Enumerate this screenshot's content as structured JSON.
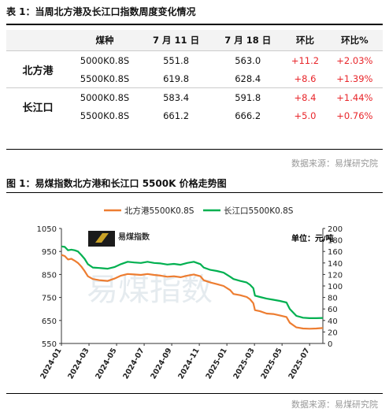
{
  "table_caption": "表 1：当周北方港及长江口指数周度变化情况",
  "table": {
    "headers": [
      "",
      "煤种",
      "7 月 11 日",
      "7 月 18 日",
      "环比",
      "环比%"
    ],
    "groups": [
      {
        "name": "北方港",
        "rows": [
          {
            "coal": "5000K0.8S",
            "jul11": "551.8",
            "jul18": "563.0",
            "chg": "+11.2",
            "pct": "+2.03%"
          },
          {
            "coal": "5500K0.8S",
            "jul11": "619.8",
            "jul18": "628.4",
            "chg": "+8.6",
            "pct": "+1.39%"
          }
        ]
      },
      {
        "name": "长江口",
        "rows": [
          {
            "coal": "5000K0.8S",
            "jul11": "583.4",
            "jul18": "591.8",
            "chg": "+8.4",
            "pct": "+1.44%"
          },
          {
            "coal": "5500K0.8S",
            "jul11": "661.2",
            "jul18": "666.2",
            "chg": "+5.0",
            "pct": "+0.76%"
          }
        ]
      }
    ]
  },
  "source_top": "数据来源：易煤研究院",
  "figure_caption": "图 1：易煤指数北方港和长江口 5500K 价格走势图",
  "source_bottom": "数据来源：易煤研究院",
  "logo_text": "易煤指数",
  "watermark": "易煤指数",
  "colors": {
    "north": "#ed7d31",
    "yangtze": "#00b050",
    "positive": "#e8252a"
  },
  "chart_data": {
    "type": "line",
    "unit_label": "单位：元/吨",
    "legend_position": "top-center",
    "x_tick_labels": [
      "2024-01",
      "2024-03",
      "2024-05",
      "2024-07",
      "2024-09",
      "2024-11",
      "2025-01",
      "2025-03",
      "2025-05",
      "2025-07"
    ],
    "x_range": [
      2024.0,
      2025.58
    ],
    "ylim_left": [
      550,
      1050
    ],
    "yticks_left": [
      550,
      650,
      750,
      850,
      950,
      1050
    ],
    "ylim_right": [
      0,
      200
    ],
    "yticks_right": [
      0,
      20,
      40,
      60,
      80,
      100,
      120,
      140,
      160,
      180,
      200
    ],
    "series": [
      {
        "name": "北方港5500K0.8S",
        "color": "#ed7d31",
        "points": [
          [
            2024.0,
            935
          ],
          [
            2024.02,
            930
          ],
          [
            2024.04,
            915
          ],
          [
            2024.06,
            918
          ],
          [
            2024.08,
            910
          ],
          [
            2024.1,
            900
          ],
          [
            2024.12,
            885
          ],
          [
            2024.14,
            865
          ],
          [
            2024.16,
            842
          ],
          [
            2024.19,
            830
          ],
          [
            2024.23,
            825
          ],
          [
            2024.28,
            822
          ],
          [
            2024.32,
            832
          ],
          [
            2024.36,
            845
          ],
          [
            2024.4,
            852
          ],
          [
            2024.44,
            850
          ],
          [
            2024.48,
            848
          ],
          [
            2024.52,
            852
          ],
          [
            2024.56,
            848
          ],
          [
            2024.6,
            845
          ],
          [
            2024.64,
            840
          ],
          [
            2024.68,
            842
          ],
          [
            2024.72,
            838
          ],
          [
            2024.76,
            845
          ],
          [
            2024.8,
            850
          ],
          [
            2024.84,
            842
          ],
          [
            2024.86,
            825
          ],
          [
            2024.9,
            815
          ],
          [
            2024.94,
            808
          ],
          [
            2024.98,
            800
          ],
          [
            2025.02,
            782
          ],
          [
            2025.04,
            765
          ],
          [
            2025.08,
            760
          ],
          [
            2025.12,
            752
          ],
          [
            2025.14,
            742
          ],
          [
            2025.16,
            725
          ],
          [
            2025.17,
            695
          ],
          [
            2025.2,
            690
          ],
          [
            2025.24,
            680
          ],
          [
            2025.28,
            678
          ],
          [
            2025.32,
            672
          ],
          [
            2025.36,
            665
          ],
          [
            2025.38,
            640
          ],
          [
            2025.42,
            620
          ],
          [
            2025.46,
            615
          ],
          [
            2025.5,
            614
          ],
          [
            2025.54,
            615
          ],
          [
            2025.58,
            617
          ]
        ]
      },
      {
        "name": "长江口5500K0.8S",
        "color": "#00b050",
        "points": [
          [
            2024.0,
            972
          ],
          [
            2024.02,
            970
          ],
          [
            2024.04,
            955
          ],
          [
            2024.06,
            958
          ],
          [
            2024.08,
            955
          ],
          [
            2024.1,
            950
          ],
          [
            2024.12,
            935
          ],
          [
            2024.14,
            918
          ],
          [
            2024.16,
            895
          ],
          [
            2024.19,
            880
          ],
          [
            2024.23,
            878
          ],
          [
            2024.28,
            875
          ],
          [
            2024.32,
            882
          ],
          [
            2024.36,
            895
          ],
          [
            2024.4,
            905
          ],
          [
            2024.44,
            902
          ],
          [
            2024.48,
            900
          ],
          [
            2024.52,
            905
          ],
          [
            2024.56,
            900
          ],
          [
            2024.6,
            898
          ],
          [
            2024.64,
            893
          ],
          [
            2024.68,
            896
          ],
          [
            2024.72,
            892
          ],
          [
            2024.76,
            900
          ],
          [
            2024.8,
            905
          ],
          [
            2024.84,
            895
          ],
          [
            2024.86,
            880
          ],
          [
            2024.9,
            870
          ],
          [
            2024.94,
            865
          ],
          [
            2024.98,
            858
          ],
          [
            2025.02,
            840
          ],
          [
            2025.04,
            830
          ],
          [
            2025.08,
            822
          ],
          [
            2025.12,
            815
          ],
          [
            2025.14,
            805
          ],
          [
            2025.16,
            790
          ],
          [
            2025.17,
            758
          ],
          [
            2025.2,
            752
          ],
          [
            2025.24,
            745
          ],
          [
            2025.28,
            740
          ],
          [
            2025.32,
            735
          ],
          [
            2025.36,
            728
          ],
          [
            2025.38,
            700
          ],
          [
            2025.42,
            670
          ],
          [
            2025.46,
            662
          ],
          [
            2025.5,
            660
          ],
          [
            2025.54,
            660
          ],
          [
            2025.58,
            661
          ]
        ]
      }
    ]
  }
}
